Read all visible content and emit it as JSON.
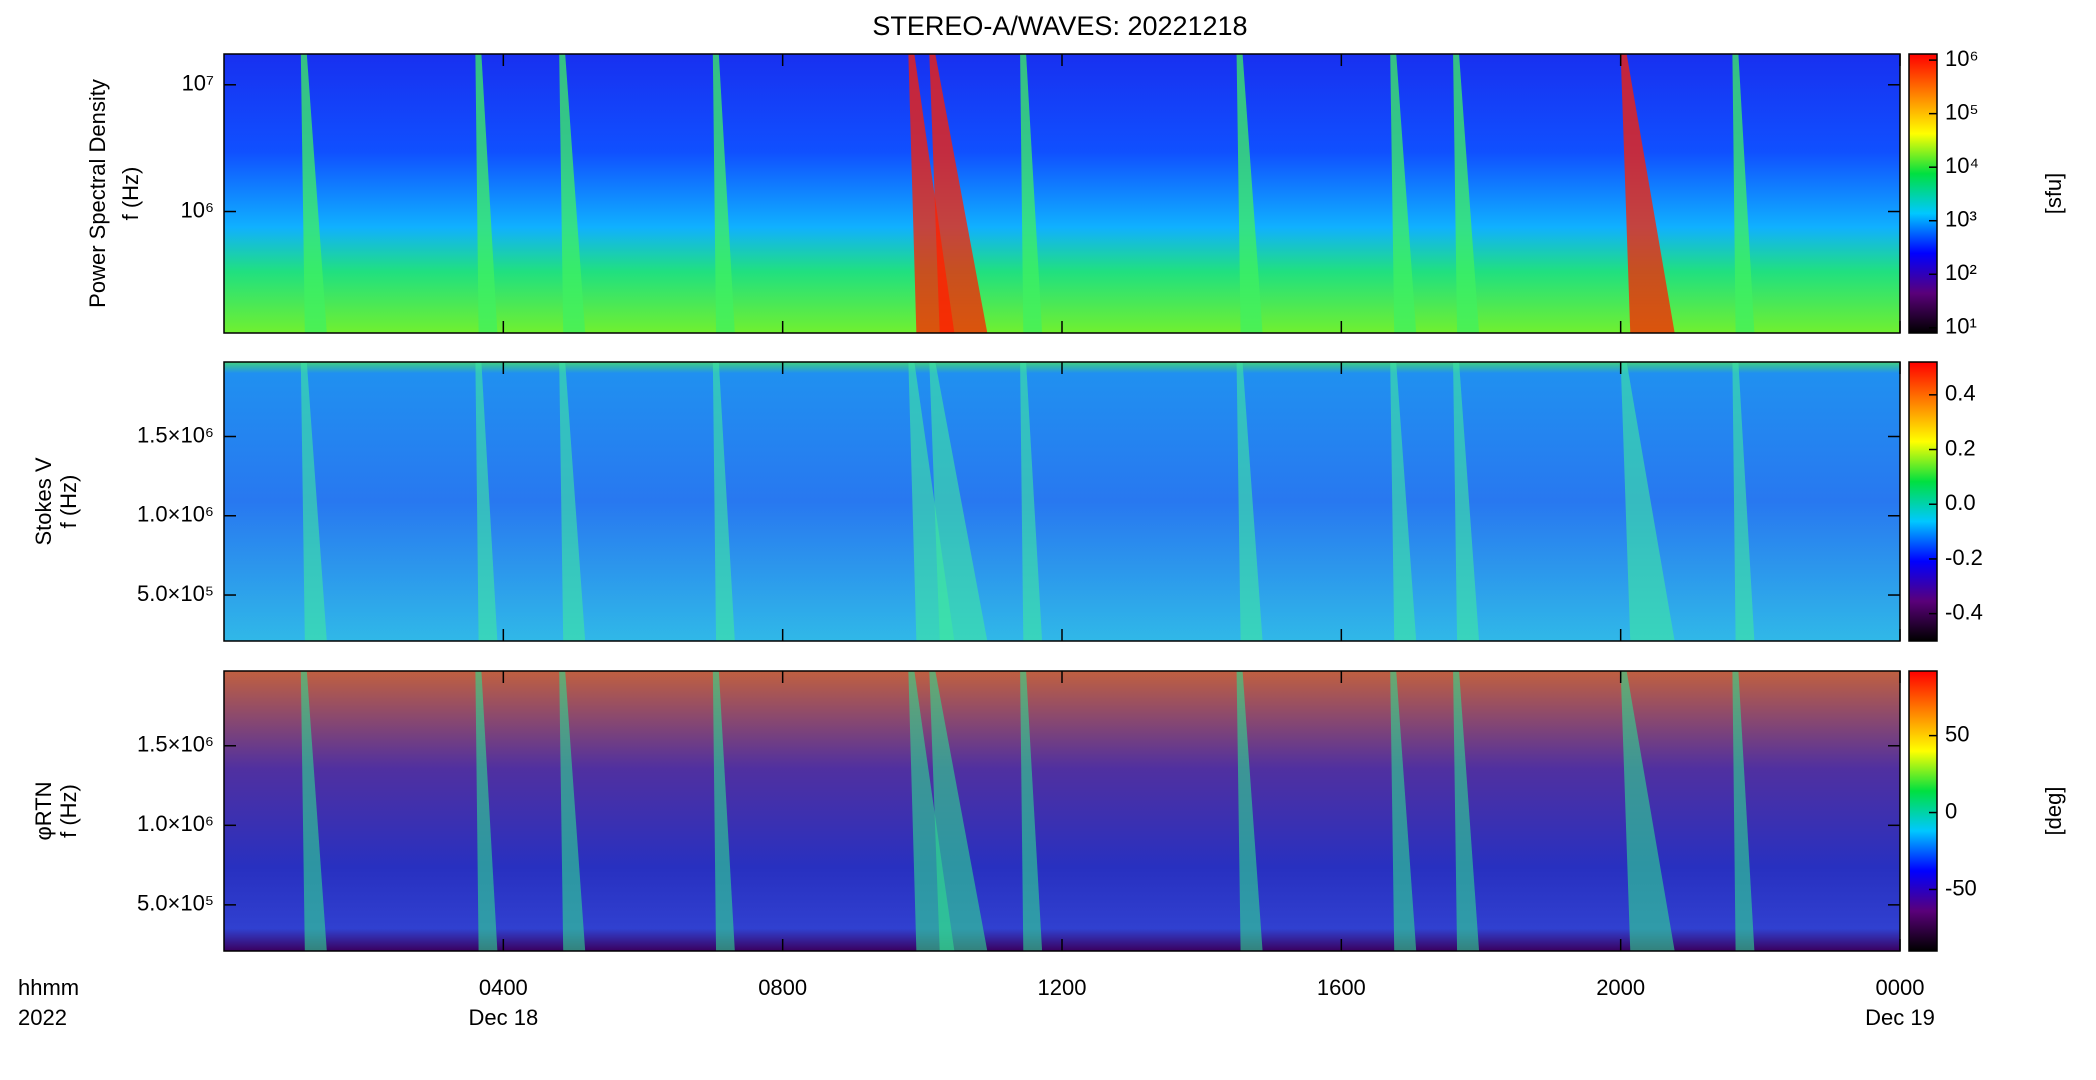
{
  "title": "STEREO-A/WAVES: 20221218",
  "x_axis": {
    "label": [
      "hhmm",
      "2022"
    ],
    "xlim": [
      0,
      24
    ],
    "xticks": [
      {
        "value": 4,
        "label": "0400"
      },
      {
        "value": 8,
        "label": "0800"
      },
      {
        "value": 12,
        "label": "1200"
      },
      {
        "value": 16,
        "label": "1600"
      },
      {
        "value": 20,
        "label": "2000"
      },
      {
        "value": 24,
        "label": "0000"
      }
    ],
    "date_labels": [
      {
        "value": 4,
        "label": "Dec 18"
      },
      {
        "value": 24,
        "label": "Dec 19"
      }
    ]
  },
  "chart_data": [
    {
      "type": "heatmap",
      "ylabel": [
        "Power Spectral Density",
        "f (Hz)"
      ],
      "ylog": true,
      "ylim": [
        110000,
        17500000
      ],
      "yticks": [
        {
          "value": 1000000,
          "label": "10⁶"
        },
        {
          "value": 10000000,
          "label": "10⁷"
        }
      ],
      "colorbar": {
        "label": "[sfu]",
        "log": true,
        "clim": [
          8,
          1300000
        ],
        "ticks": [
          {
            "value": 10,
            "label": "10¹"
          },
          {
            "value": 100,
            "label": "10²"
          },
          {
            "value": 1000,
            "label": "10³"
          },
          {
            "value": 10000,
            "label": "10⁴"
          },
          {
            "value": 100000,
            "label": "10⁵"
          },
          {
            "value": 1000000,
            "label": "10⁶"
          }
        ]
      },
      "colormap": [
        "#000000",
        "#5a007a",
        "#0000ff",
        "#00c8ff",
        "#00e040",
        "#ffff00",
        "#ff8000",
        "#ff0000"
      ]
    },
    {
      "type": "heatmap",
      "ylabel": [
        "Stokes V",
        "f (Hz)"
      ],
      "ylog": false,
      "ylim": [
        210000,
        1970000
      ],
      "yticks": [
        {
          "value": 500000,
          "label": "5.0×10⁵"
        },
        {
          "value": 1000000,
          "label": "1.0×10⁶"
        },
        {
          "value": 1500000,
          "label": "1.5×10⁶"
        }
      ],
      "colorbar": {
        "label": "",
        "log": false,
        "clim": [
          -0.5,
          0.52
        ],
        "ticks": [
          -0.4,
          -0.2,
          {
            "value": 0,
            "label": "0.0"
          },
          0.2,
          0.4
        ]
      },
      "colormap": [
        "#000000",
        "#5a007a",
        "#0000ff",
        "#00c8ff",
        "#00e040",
        "#ffff00",
        "#ff8000",
        "#ff0000"
      ]
    },
    {
      "type": "heatmap",
      "ylabel": [
        "φRTN",
        "f (Hz)"
      ],
      "ylog": false,
      "ylim": [
        210000,
        1970000
      ],
      "yticks": [
        {
          "value": 500000,
          "label": "5.0×10⁵"
        },
        {
          "value": 1000000,
          "label": "1.0×10⁶"
        },
        {
          "value": 1500000,
          "label": "1.5×10⁶"
        }
      ],
      "colorbar": {
        "label": "[deg]",
        "log": false,
        "clim": [
          -90,
          92
        ],
        "ticks": [
          -50,
          0,
          50
        ]
      },
      "colormap": [
        "#000000",
        "#5a007a",
        "#0000ff",
        "#00c8ff",
        "#00e040",
        "#ffff00",
        "#ff8000",
        "#ff0000"
      ]
    }
  ]
}
